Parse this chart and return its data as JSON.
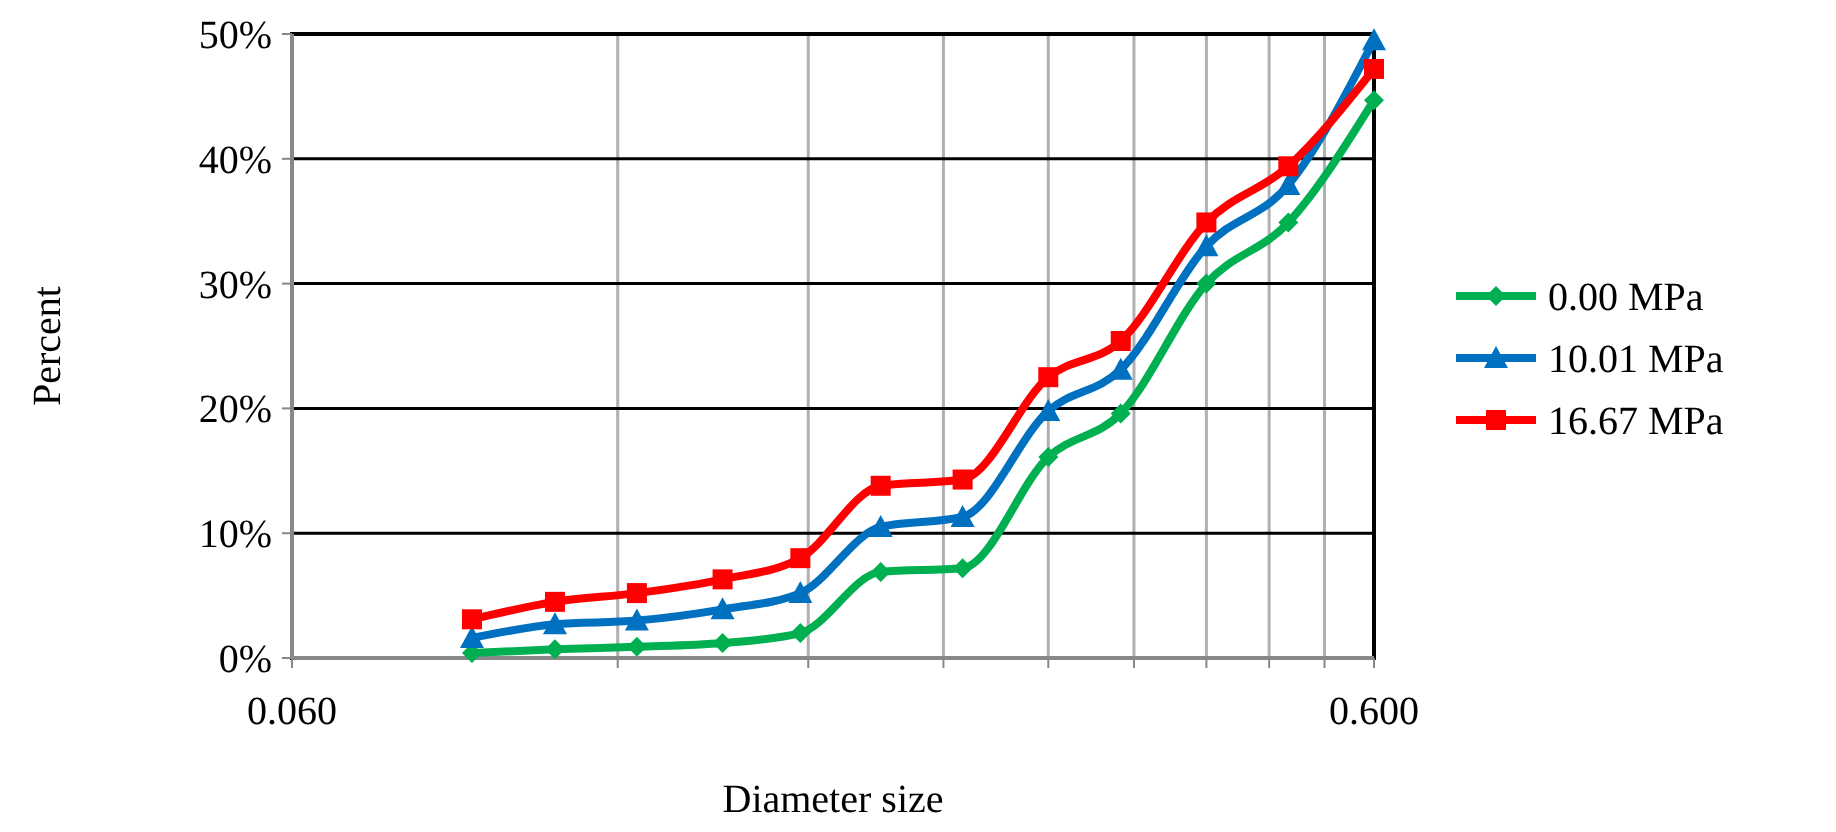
{
  "chart_data": {
    "type": "line",
    "xlabel": "Diameter size",
    "ylabel": "Percent",
    "log": "x",
    "x": [
      0.088,
      0.105,
      0.125,
      0.15,
      0.177,
      0.21,
      0.25,
      0.3,
      0.35,
      0.42,
      0.5,
      0.6
    ],
    "xlim": [
      0.06,
      0.6
    ],
    "xticks": [
      {
        "value": 0.06,
        "label": "0.060"
      },
      {
        "value": 0.12,
        "label": null
      },
      {
        "value": 0.18,
        "label": null
      },
      {
        "value": 0.24,
        "label": null
      },
      {
        "value": 0.3,
        "label": null
      },
      {
        "value": 0.36,
        "label": null
      },
      {
        "value": 0.42,
        "label": null
      },
      {
        "value": 0.48,
        "label": null
      },
      {
        "value": 0.54,
        "label": null
      },
      {
        "value": 0.6,
        "label": "0.600"
      }
    ],
    "ylim": [
      0,
      50
    ],
    "yticks": [
      {
        "value": 0,
        "label": "0%"
      },
      {
        "value": 10,
        "label": "10%"
      },
      {
        "value": 20,
        "label": "20%"
      },
      {
        "value": 30,
        "label": "30%"
      },
      {
        "value": 40,
        "label": "40%"
      },
      {
        "value": 50,
        "label": "50%"
      }
    ],
    "grid": true,
    "legend": "right",
    "series": [
      {
        "name": "0.00 MPa",
        "color": "#00b050",
        "marker": "diamond",
        "values": [
          0.4,
          0.7,
          0.9,
          1.2,
          2.0,
          6.9,
          7.2,
          16.1,
          19.6,
          30.0,
          34.9,
          44.7
        ]
      },
      {
        "name": "10.01 MPa",
        "color": "#0070c0",
        "marker": "triangle",
        "values": [
          1.6,
          2.7,
          3.0,
          3.9,
          5.2,
          10.5,
          11.3,
          19.8,
          23.1,
          33.0,
          37.9,
          49.5
        ]
      },
      {
        "name": "16.67 MPa",
        "color": "#ff0000",
        "marker": "square",
        "values": [
          3.1,
          4.5,
          5.2,
          6.3,
          8.0,
          13.8,
          14.3,
          22.5,
          25.4,
          34.9,
          39.4,
          47.2
        ]
      }
    ]
  }
}
